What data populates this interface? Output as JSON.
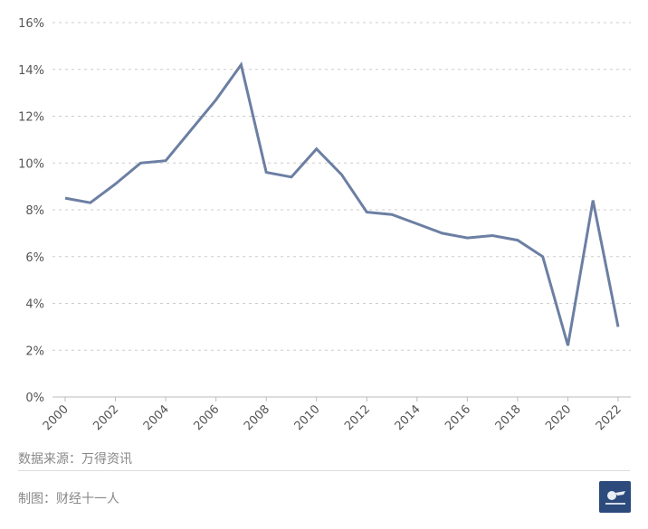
{
  "colors": {
    "line": "#6c7fa3",
    "grid": "#cccccc",
    "axis": "#bbbbbb"
  },
  "chart_data": {
    "type": "line",
    "title": "",
    "xlabel": "",
    "ylabel": "",
    "x": [
      2000,
      2001,
      2002,
      2003,
      2004,
      2005,
      2006,
      2007,
      2008,
      2009,
      2010,
      2011,
      2012,
      2013,
      2014,
      2015,
      2016,
      2017,
      2018,
      2019,
      2020,
      2021,
      2022
    ],
    "values": [
      8.5,
      8.3,
      9.1,
      10.0,
      10.1,
      11.4,
      12.7,
      14.2,
      9.6,
      9.4,
      10.6,
      9.5,
      7.9,
      7.8,
      7.4,
      7.0,
      6.8,
      6.9,
      6.7,
      6.0,
      2.2,
      8.4,
      3.0
    ],
    "x_tick_labels": [
      "2000",
      "2002",
      "2004",
      "2006",
      "2008",
      "2010",
      "2012",
      "2014",
      "2016",
      "2018",
      "2020",
      "2022"
    ],
    "y_tick_labels": [
      "0%",
      "2%",
      "4%",
      "6%",
      "8%",
      "10%",
      "12%",
      "14%",
      "16%"
    ],
    "ylim": [
      0,
      16
    ],
    "grid": true,
    "legend": "none"
  },
  "footer": {
    "source": "数据来源：万得资讯",
    "credit": "制图：财经十一人",
    "logo_icon": "caijing-shiyiren-logo-icon"
  }
}
